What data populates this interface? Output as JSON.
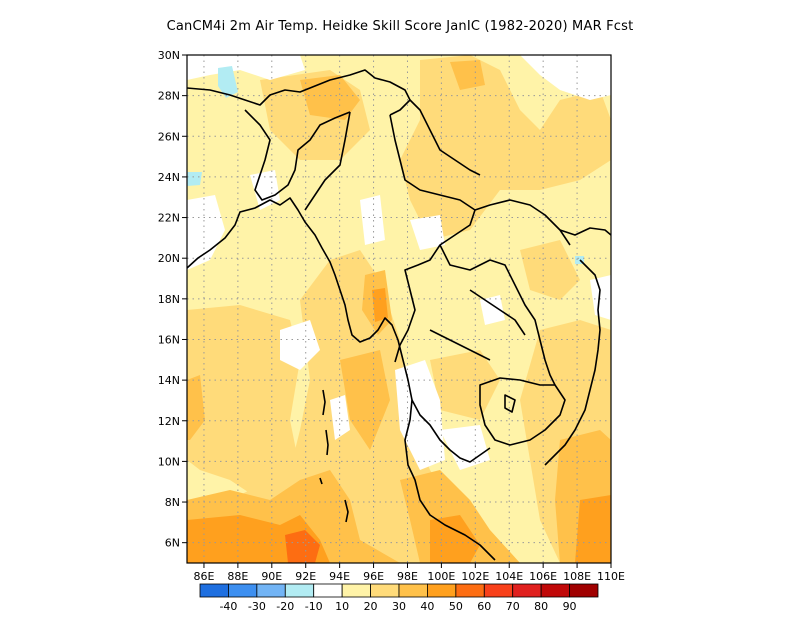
{
  "title": "CanCM4i  2m Air Temp. Heidke Skill Score JanIC (1982-2020) MAR Fcst",
  "map": {
    "lon_range": [
      85,
      110
    ],
    "lat_range": [
      5,
      30
    ],
    "lat_ticks": [
      {
        "value": 30,
        "label": "30N"
      },
      {
        "value": 28,
        "label": "28N"
      },
      {
        "value": 26,
        "label": "26N"
      },
      {
        "value": 24,
        "label": "24N"
      },
      {
        "value": 22,
        "label": "22N"
      },
      {
        "value": 20,
        "label": "20N"
      },
      {
        "value": 18,
        "label": "18N"
      },
      {
        "value": 16,
        "label": "16N"
      },
      {
        "value": 14,
        "label": "14N"
      },
      {
        "value": 12,
        "label": "12N"
      },
      {
        "value": 10,
        "label": "10N"
      },
      {
        "value": 8,
        "label": "8N"
      },
      {
        "value": 6,
        "label": "6N"
      }
    ],
    "lon_ticks": [
      {
        "value": 86,
        "label": "86E"
      },
      {
        "value": 88,
        "label": "88E"
      },
      {
        "value": 90,
        "label": "90E"
      },
      {
        "value": 92,
        "label": "92E"
      },
      {
        "value": 94,
        "label": "94E"
      },
      {
        "value": 96,
        "label": "96E"
      },
      {
        "value": 98,
        "label": "98E"
      },
      {
        "value": 100,
        "label": "100E"
      },
      {
        "value": 102,
        "label": "102E"
      },
      {
        "value": 104,
        "label": "104E"
      },
      {
        "value": 106,
        "label": "106E"
      },
      {
        "value": 108,
        "label": "108E"
      },
      {
        "value": 110,
        "label": "110E"
      }
    ],
    "grid": "dotted"
  },
  "colorbar": {
    "colors": [
      "#1e6fe0",
      "#3d8ff0",
      "#72b4f5",
      "#b2ecf3",
      "#ffffff",
      "#fff3a8",
      "#ffdb7a",
      "#ffc14a",
      "#ffa01e",
      "#fd6d12",
      "#f8401a",
      "#e0201e",
      "#c00808",
      "#a00000"
    ],
    "labels": [
      "-40",
      "-30",
      "-20",
      "-10",
      "10",
      "20",
      "30",
      "40",
      "50",
      "60",
      "70",
      "80",
      "90"
    ]
  }
}
